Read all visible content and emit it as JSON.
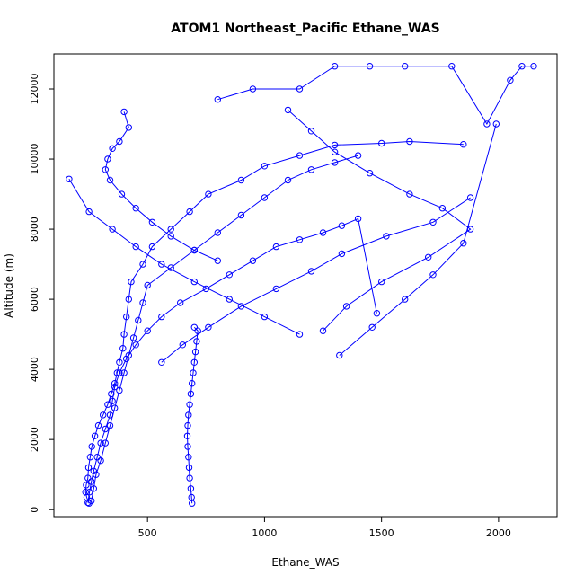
{
  "chart_data": {
    "type": "line",
    "title": "ATOM1 Northeast_Pacific Ethane_WAS",
    "xlabel": "Ethane_WAS",
    "ylabel": "Altitude (m)",
    "xlim": [
      100,
      2250
    ],
    "ylim": [
      -200,
      13000
    ],
    "x_ticks": [
      500,
      1000,
      1500,
      2000
    ],
    "y_ticks": [
      0,
      2000,
      4000,
      6000,
      8000,
      10000,
      12000
    ],
    "grid": false,
    "markers": "open-circle",
    "color": "#0000ff",
    "series": [
      {
        "x": [
          250,
          240,
          235,
          238,
          245,
          248,
          255,
          262,
          275,
          290,
          310,
          330,
          345,
          360,
          370,
          380,
          395,
          400,
          410,
          420,
          430,
          480,
          520,
          600,
          680,
          760,
          900,
          1000,
          1150,
          1300,
          1500,
          1620,
          1850
        ],
        "y": [
          180,
          350,
          500,
          700,
          900,
          1200,
          1500,
          1800,
          2100,
          2400,
          2700,
          3000,
          3300,
          3600,
          3900,
          4200,
          4600,
          5000,
          5500,
          6000,
          6500,
          7000,
          7500,
          8000,
          8500,
          9000,
          9400,
          9800,
          10100,
          10400,
          10450,
          10500,
          10420
        ]
      },
      {
        "x": [
          690,
          688,
          685,
          680,
          678,
          675,
          672,
          670,
          672,
          675,
          680,
          685,
          690,
          695,
          700,
          705,
          710,
          715,
          700
        ],
        "y": [
          180,
          350,
          600,
          900,
          1200,
          1500,
          1800,
          2100,
          2400,
          2700,
          3000,
          3300,
          3600,
          3900,
          4200,
          4500,
          4800,
          5100,
          5200
        ]
      },
      {
        "x": [
          245,
          252,
          260,
          270,
          285,
          300,
          320,
          340,
          350,
          360,
          380,
          410,
          450,
          500,
          560,
          640,
          750,
          850,
          950,
          1050,
          1150,
          1250,
          1330,
          1400,
          1480
        ],
        "y": [
          200,
          500,
          800,
          1100,
          1500,
          1900,
          2300,
          2700,
          3100,
          3500,
          3900,
          4300,
          4700,
          5100,
          5500,
          5900,
          6300,
          6700,
          7100,
          7500,
          7700,
          7900,
          8100,
          8300,
          5600
        ]
      },
      {
        "x": [
          260,
          270,
          280,
          300,
          320,
          340,
          360,
          380,
          400,
          420,
          440,
          460,
          480,
          500,
          600,
          700,
          800,
          900,
          1000,
          1100,
          1200,
          1300,
          1400
        ],
        "y": [
          250,
          600,
          1000,
          1400,
          1900,
          2400,
          2900,
          3400,
          3900,
          4400,
          4900,
          5400,
          5900,
          6400,
          6900,
          7400,
          7900,
          8400,
          8900,
          9400,
          9700,
          9900,
          10100
        ]
      },
      {
        "x": [
          400,
          420,
          380,
          350,
          330,
          320,
          340,
          390,
          450,
          520,
          600,
          700,
          800
        ],
        "y": [
          11350,
          10900,
          10500,
          10300,
          10000,
          9700,
          9400,
          9000,
          8600,
          8200,
          7800,
          7400,
          7100
        ]
      },
      {
        "x": [
          800,
          950,
          1150,
          1300,
          1450,
          1600,
          1800,
          1950,
          2050,
          2100,
          2150
        ],
        "y": [
          11700,
          12000,
          12000,
          12650,
          12650,
          12650,
          12650,
          11000,
          12250,
          12650,
          12650
        ]
      },
      {
        "x": [
          165,
          250,
          350,
          450,
          560,
          700,
          850,
          1000,
          1150
        ],
        "y": [
          9430,
          8500,
          8000,
          7500,
          7000,
          6500,
          6000,
          5500,
          5000
        ]
      },
      {
        "x": [
          1100,
          1200,
          1300,
          1450,
          1620,
          1760,
          1880,
          1700,
          1500,
          1350,
          1250
        ],
        "y": [
          11400,
          10800,
          10200,
          9600,
          9000,
          8600,
          8000,
          7200,
          6500,
          5800,
          5100
        ]
      },
      {
        "x": [
          560,
          650,
          760,
          900,
          1050,
          1200,
          1330,
          1520,
          1720,
          1880
        ],
        "y": [
          4200,
          4700,
          5200,
          5800,
          6300,
          6800,
          7300,
          7800,
          8200,
          8900
        ]
      },
      {
        "x": [
          1320,
          1460,
          1600,
          1720,
          1850,
          1990
        ],
        "y": [
          4400,
          5200,
          6000,
          6700,
          7600,
          11000
        ]
      }
    ]
  }
}
